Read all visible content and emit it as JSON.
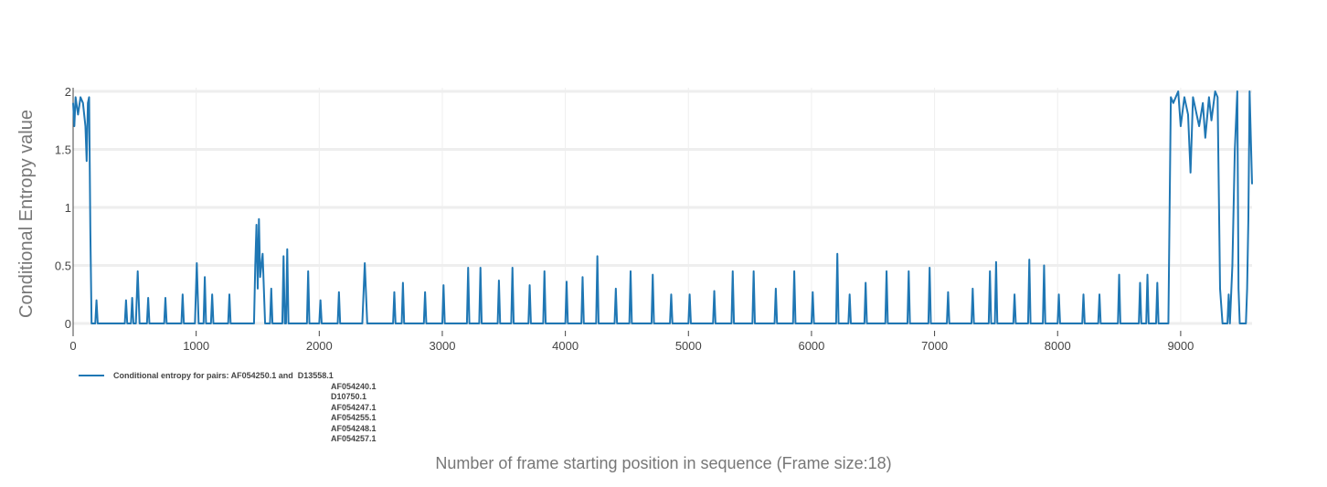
{
  "chart_data": {
    "type": "line",
    "xlabel": "Number of frame starting position in sequence (Frame size:18)",
    "ylabel": "Conditional Entropy value",
    "xlim": [
      0,
      9580
    ],
    "ylim": [
      0,
      2
    ],
    "xticks": [
      0,
      1000,
      2000,
      3000,
      4000,
      5000,
      6000,
      7000,
      8000,
      9000
    ],
    "yticks": [
      0,
      0.5,
      1,
      1.5,
      2
    ],
    "grid": true,
    "x": [
      0,
      10,
      20,
      40,
      60,
      80,
      100,
      110,
      120,
      130,
      140,
      150,
      180,
      190,
      200,
      420,
      430,
      440,
      470,
      480,
      490,
      510,
      525,
      540,
      600,
      610,
      620,
      740,
      750,
      760,
      880,
      890,
      900,
      990,
      1005,
      1020,
      1060,
      1070,
      1080,
      1120,
      1130,
      1140,
      1260,
      1270,
      1280,
      1470,
      1480,
      1490,
      1500,
      1510,
      1520,
      1540,
      1560,
      1600,
      1610,
      1620,
      1700,
      1710,
      1720,
      1730,
      1740,
      1750,
      1900,
      1910,
      1920,
      2000,
      2010,
      2020,
      2150,
      2160,
      2170,
      2350,
      2370,
      2390,
      2600,
      2610,
      2620,
      2670,
      2680,
      2690,
      2850,
      2860,
      2870,
      3000,
      3010,
      3020,
      3200,
      3210,
      3220,
      3300,
      3310,
      3320,
      3450,
      3460,
      3470,
      3560,
      3570,
      3580,
      3700,
      3710,
      3720,
      3820,
      3830,
      3840,
      4000,
      4010,
      4020,
      4130,
      4140,
      4150,
      4250,
      4260,
      4270,
      4400,
      4410,
      4420,
      4520,
      4530,
      4540,
      4700,
      4710,
      4720,
      4850,
      4860,
      4870,
      5000,
      5010,
      5020,
      5200,
      5210,
      5220,
      5350,
      5360,
      5370,
      5520,
      5530,
      5540,
      5700,
      5710,
      5720,
      5850,
      5860,
      5870,
      6000,
      6010,
      6020,
      6200,
      6210,
      6220,
      6300,
      6310,
      6320,
      6430,
      6440,
      6450,
      6600,
      6610,
      6620,
      6780,
      6790,
      6800,
      6950,
      6960,
      6970,
      7100,
      7110,
      7120,
      7300,
      7310,
      7320,
      7440,
      7450,
      7460,
      7490,
      7500,
      7510,
      7640,
      7650,
      7660,
      7760,
      7770,
      7780,
      7880,
      7890,
      7900,
      8000,
      8010,
      8020,
      8200,
      8210,
      8220,
      8330,
      8340,
      8350,
      8490,
      8500,
      8510,
      8660,
      8670,
      8680,
      8720,
      8730,
      8740,
      8800,
      8810,
      8820,
      8900,
      8920,
      8940,
      8980,
      9000,
      9030,
      9060,
      9080,
      9100,
      9150,
      9180,
      9200,
      9230,
      9250,
      9280,
      9300,
      9320,
      9340,
      9380,
      9390,
      9400,
      9420,
      9440,
      9460,
      9470,
      9480,
      9530,
      9540,
      9550,
      9560,
      9570,
      9580
    ],
    "series": [
      {
        "name": "Conditional entropy for pairs: AF054250.1 and  D13558.1\nAF054240.1\nD10750.1\nAF054247.1\nAF054255.1\nAF054248.1\nAF054257.1",
        "color": "#1f77b4",
        "values": [
          1.9,
          1.7,
          1.95,
          1.8,
          1.95,
          1.9,
          1.7,
          1.4,
          1.9,
          1.95,
          0.8,
          0,
          0,
          0.2,
          0,
          0,
          0.2,
          0,
          0,
          0.22,
          0,
          0,
          0.45,
          0,
          0,
          0.22,
          0,
          0,
          0.22,
          0,
          0,
          0.25,
          0,
          0,
          0.52,
          0,
          0,
          0.4,
          0,
          0,
          0.25,
          0,
          0,
          0.25,
          0,
          0,
          0.5,
          0.85,
          0.3,
          0.9,
          0.4,
          0.6,
          0,
          0,
          0.3,
          0,
          0,
          0.58,
          0,
          0,
          0.64,
          0,
          0,
          0.45,
          0,
          0,
          0.2,
          0,
          0,
          0.27,
          0,
          0,
          0.52,
          0,
          0,
          0.27,
          0,
          0,
          0.35,
          0,
          0,
          0.27,
          0,
          0,
          0.33,
          0,
          0,
          0.48,
          0,
          0,
          0.48,
          0,
          0,
          0.37,
          0,
          0,
          0.48,
          0,
          0,
          0.33,
          0,
          0,
          0.45,
          0,
          0,
          0.36,
          0,
          0,
          0.4,
          0,
          0,
          0.58,
          0,
          0,
          0.3,
          0,
          0,
          0.45,
          0,
          0,
          0.42,
          0,
          0,
          0.25,
          0,
          0,
          0.25,
          0,
          0,
          0.28,
          0,
          0,
          0.45,
          0,
          0,
          0.45,
          0,
          0,
          0.3,
          0,
          0,
          0.45,
          0,
          0,
          0.27,
          0,
          0,
          0.6,
          0,
          0,
          0.25,
          0,
          0,
          0.35,
          0,
          0,
          0.45,
          0,
          0,
          0.45,
          0,
          0,
          0.48,
          0,
          0,
          0.27,
          0,
          0,
          0.3,
          0,
          0,
          0.45,
          0,
          0,
          0.53,
          0,
          0,
          0.25,
          0,
          0,
          0.55,
          0,
          0,
          0.5,
          0,
          0,
          0.25,
          0,
          0,
          0.25,
          0,
          0,
          0.25,
          0,
          0,
          0.42,
          0,
          0,
          0.35,
          0,
          0,
          0.42,
          0,
          0,
          0.35,
          0,
          0,
          1.95,
          1.9,
          2,
          1.7,
          1.95,
          1.8,
          1.3,
          1.95,
          1.7,
          1.9,
          1.6,
          1.95,
          1.75,
          2,
          1.95,
          0.3,
          0,
          0,
          0.25,
          0,
          0.5,
          1.5,
          2,
          0.3,
          0,
          0,
          0.3,
          0.9,
          2,
          1.6,
          1.2
        ]
      }
    ]
  }
}
